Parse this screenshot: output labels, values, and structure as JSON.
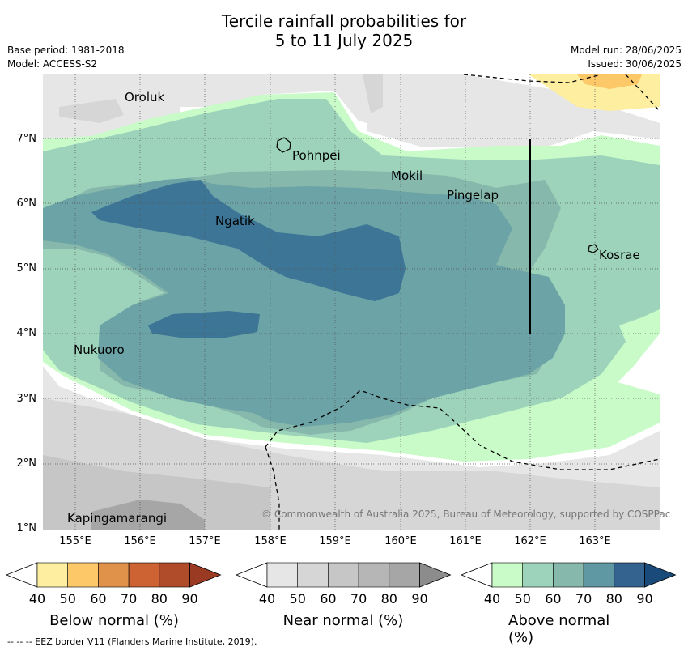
{
  "title_line1": "Tercile rainfall probabilities for",
  "title_line2": "5 to 11 July 2025",
  "meta_left": [
    "Base period: 1981-2018",
    "Model: ACCESS-S2"
  ],
  "meta_right": [
    "Model run: 28/06/2025",
    "Issued: 30/06/2025"
  ],
  "lat_ticks": [
    "7°N",
    "6°N",
    "5°N",
    "4°N",
    "3°N",
    "2°N",
    "1°N"
  ],
  "lon_ticks": [
    "155°E",
    "156°E",
    "157°E",
    "158°E",
    "159°E",
    "160°E",
    "161°E",
    "162°E",
    "163°E"
  ],
  "places": [
    "Oroluk",
    "Pohnpei",
    "Mokil",
    "Pingelap",
    "Ngatik",
    "Kosrae",
    "Nukuoro",
    "Kapingamarangi"
  ],
  "copyright": "© Commonwealth of Australia 2025, Bureau of Meteorology, supported by COSPPac",
  "colorbars": [
    {
      "title": "Below normal (%)",
      "labels": [
        "40",
        "50",
        "60",
        "70",
        "80",
        "90"
      ],
      "colors": [
        "#ffffff",
        "#fdeea0",
        "#fdc867",
        "#e0914a",
        "#cd6232",
        "#b04c2a",
        "#9a3a22"
      ]
    },
    {
      "title": "Near normal (%)",
      "labels": [
        "40",
        "50",
        "60",
        "70",
        "80",
        "90"
      ],
      "colors": [
        "#ffffff",
        "#e6e6e6",
        "#d6d6d6",
        "#c6c6c6",
        "#b6b6b6",
        "#a6a6a6",
        "#8c8c8c"
      ]
    },
    {
      "title": "Above normal (%)",
      "labels": [
        "40",
        "50",
        "60",
        "70",
        "80",
        "90"
      ],
      "colors": [
        "#ffffff",
        "#c8fbc8",
        "#9dd3bb",
        "#86b8ab",
        "#5f97a3",
        "#35638f",
        "#1a4a7a"
      ]
    }
  ],
  "footnote": "--  --  -- EEZ border V11 (Flanders Marine Institute, 2019)."
}
